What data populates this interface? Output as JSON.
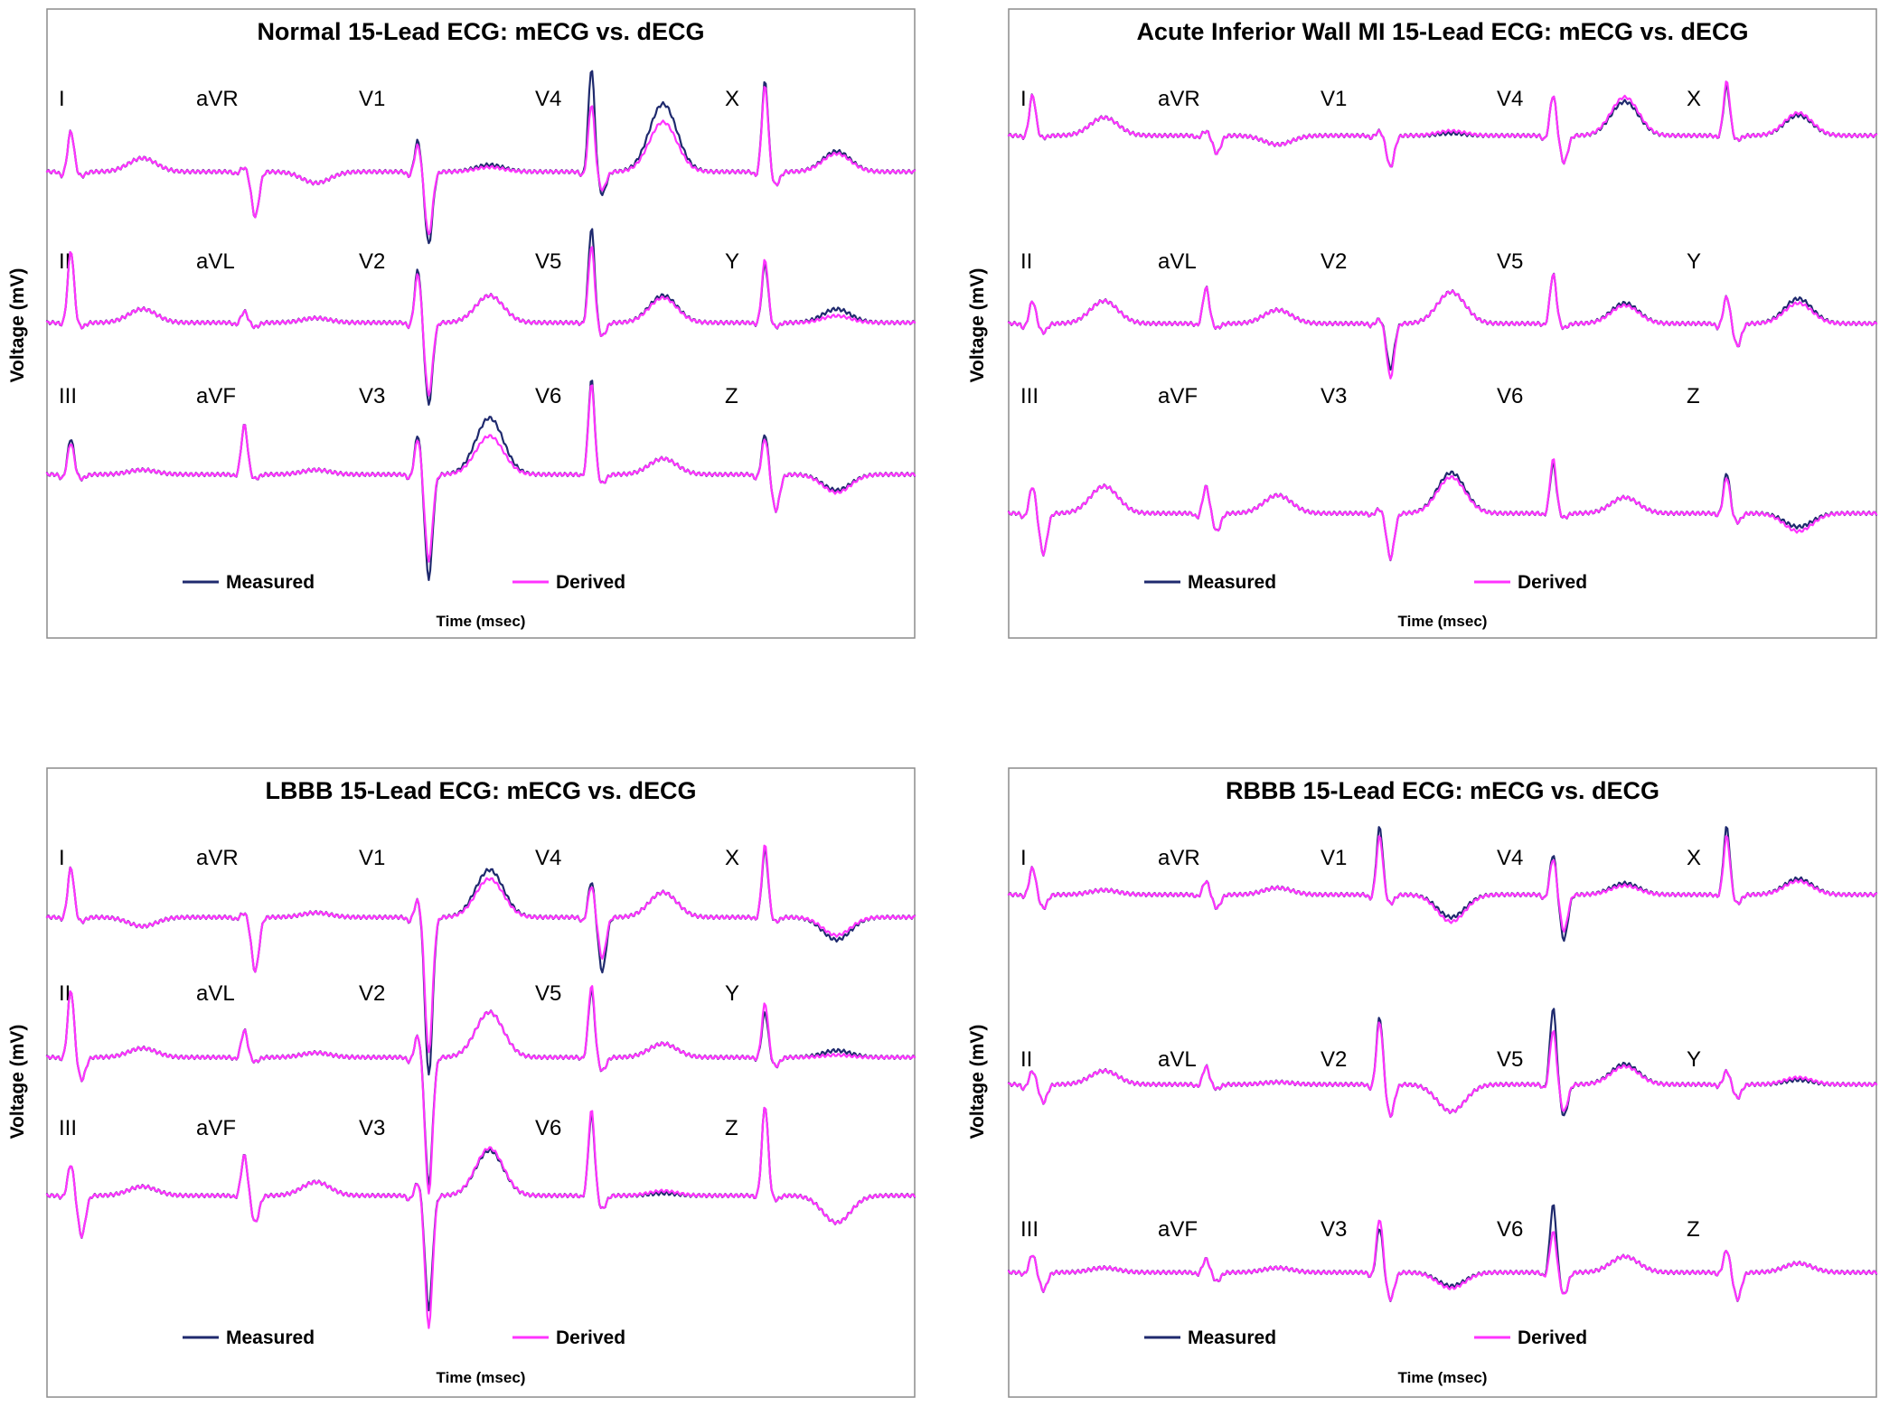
{
  "chart_data": [
    {
      "type": "line",
      "title": "Normal 15-Lead ECG:   mECG vs. dECG",
      "xlabel": "Time (msec)",
      "ylabel": "Voltage (mV)",
      "legend": [
        {
          "name": "Measured",
          "color": "#1f2a6e"
        },
        {
          "name": "Derived",
          "color": "#ff33ff"
        }
      ],
      "rows": [
        {
          "leads": [
            "I",
            "aVR",
            "V1",
            "V4",
            "X"
          ],
          "beats": [
            {
              "r": 0.9,
              "q": 0.1,
              "s": -0.1,
              "t": 0.3,
              "tm": 0.3,
              "rm": 0.9,
              "sm": -0.1
            },
            {
              "r": 0.1,
              "q": 0.05,
              "s": -1.0,
              "t": -0.25,
              "tm": -0.25,
              "rm": 0.1,
              "sm": -1.0
            },
            {
              "r": 0.6,
              "q": 0.1,
              "s": -1.4,
              "t": 0.1,
              "tm": 0.15,
              "rm": 0.7,
              "sm": -1.6
            },
            {
              "r": 1.5,
              "q": 0.1,
              "s": -0.4,
              "t": 1.1,
              "tm": 1.5,
              "rm": 2.3,
              "sm": -0.5
            },
            {
              "r": 1.9,
              "q": 0.1,
              "s": -0.3,
              "t": 0.4,
              "tm": 0.45,
              "rm": 2.0,
              "sm": -0.3
            }
          ]
        },
        {
          "leads": [
            "II",
            "aVL",
            "V2",
            "V5",
            "Y"
          ],
          "beats": [
            {
              "r": 1.6,
              "q": 0.05,
              "s": -0.1,
              "t": 0.3,
              "tm": 0.3,
              "rm": 1.6,
              "sm": -0.1
            },
            {
              "r": 0.25,
              "q": 0.05,
              "s": -0.1,
              "t": 0.1,
              "tm": 0.1,
              "rm": 0.25,
              "sm": -0.1
            },
            {
              "r": 1.1,
              "q": 0.1,
              "s": -1.6,
              "t": 0.6,
              "tm": 0.6,
              "rm": 1.2,
              "sm": -1.8
            },
            {
              "r": 1.7,
              "q": 0.05,
              "s": -0.3,
              "t": 0.55,
              "tm": 0.6,
              "rm": 2.1,
              "sm": -0.3
            },
            {
              "r": 1.4,
              "q": 0.05,
              "s": -0.1,
              "t": 0.15,
              "tm": 0.3,
              "rm": 1.3,
              "sm": -0.1
            }
          ]
        },
        {
          "leads": [
            "III",
            "aVF",
            "V3",
            "V6",
            "Z"
          ],
          "beats": [
            {
              "r": 0.7,
              "q": 0.1,
              "s": -0.1,
              "t": 0.1,
              "tm": 0.1,
              "rm": 0.8,
              "sm": -0.1
            },
            {
              "r": 1.1,
              "q": 0.05,
              "s": -0.1,
              "t": 0.1,
              "tm": 0.1,
              "rm": 1.1,
              "sm": -0.1
            },
            {
              "r": 0.8,
              "q": 0.1,
              "s": -1.9,
              "t": 0.85,
              "tm": 1.25,
              "rm": 0.9,
              "sm": -2.3
            },
            {
              "r": 2.0,
              "q": 0.05,
              "s": -0.2,
              "t": 0.35,
              "tm": 0.35,
              "rm": 2.1,
              "sm": -0.2
            },
            {
              "r": 0.8,
              "q": 0.1,
              "s": -0.8,
              "t": -0.4,
              "tm": -0.35,
              "rm": 0.9,
              "sm": -0.8
            }
          ]
        }
      ]
    },
    {
      "type": "line",
      "title": "Acute Inferior Wall MI 15-Lead ECG:   mECG vs. dECG",
      "xlabel": "Time (msec)",
      "ylabel": "Voltage (mV)",
      "legend": [
        {
          "name": "Measured",
          "color": "#1f2a6e"
        },
        {
          "name": "Derived",
          "color": "#ff33ff"
        }
      ],
      "rows": [
        {
          "leads": [
            "I",
            "aVR",
            "V1",
            "V4",
            "X"
          ],
          "beats": [
            {
              "r": 0.9,
              "q": 0.05,
              "s": -0.05,
              "t": 0.4,
              "tm": 0.4,
              "rm": 0.9,
              "sm": -0.05
            },
            {
              "r": 0.1,
              "q": 0.05,
              "s": -0.4,
              "t": -0.2,
              "tm": -0.2,
              "rm": 0.1,
              "sm": -0.4
            },
            {
              "r": 0.1,
              "q": 0.05,
              "s": -0.7,
              "t": 0.1,
              "tm": 0.05,
              "rm": 0.1,
              "sm": -0.7
            },
            {
              "r": 0.9,
              "q": 0.1,
              "s": -0.6,
              "t": 0.85,
              "tm": 0.75,
              "rm": 0.9,
              "sm": -0.6
            },
            {
              "r": 1.2,
              "q": 0.05,
              "s": -0.1,
              "t": 0.5,
              "tm": 0.45,
              "rm": 1.1,
              "sm": -0.1
            }
          ]
        },
        {
          "leads": [
            "II",
            "aVL",
            "V2",
            "V5",
            "Y"
          ],
          "beats": [
            {
              "r": 0.5,
              "q": 0.1,
              "s": -0.2,
              "t": 0.5,
              "tm": 0.5,
              "rm": 0.5,
              "sm": -0.2
            },
            {
              "r": 0.8,
              "q": 0.05,
              "s": -0.1,
              "t": 0.3,
              "tm": 0.3,
              "rm": 0.8,
              "sm": -0.1
            },
            {
              "r": 0.1,
              "q": 0.05,
              "s": -1.2,
              "t": 0.7,
              "tm": 0.7,
              "rm": 0.1,
              "sm": -1.0
            },
            {
              "r": 1.1,
              "q": 0.05,
              "s": -0.1,
              "t": 0.4,
              "tm": 0.45,
              "rm": 1.1,
              "sm": -0.1
            },
            {
              "r": 0.6,
              "q": 0.1,
              "s": -0.5,
              "t": 0.45,
              "tm": 0.55,
              "rm": 0.6,
              "sm": -0.5
            }
          ]
        },
        {
          "leads": [
            "III",
            "aVF",
            "V3",
            "V6",
            "Z"
          ],
          "beats": [
            {
              "r": 0.6,
              "q": 0.1,
              "s": -0.9,
              "t": 0.6,
              "tm": 0.6,
              "rm": 0.6,
              "sm": -0.9
            },
            {
              "r": 0.6,
              "q": 0.1,
              "s": -0.4,
              "t": 0.4,
              "tm": 0.4,
              "rm": 0.6,
              "sm": -0.4
            },
            {
              "r": 0.1,
              "q": 0.05,
              "s": -1.0,
              "t": 0.8,
              "tm": 0.9,
              "rm": 0.1,
              "sm": -1.0
            },
            {
              "r": 1.2,
              "q": 0.05,
              "s": -0.1,
              "t": 0.35,
              "tm": 0.35,
              "rm": 1.1,
              "sm": -0.1
            },
            {
              "r": 0.8,
              "q": 0.05,
              "s": -0.2,
              "t": -0.4,
              "tm": -0.3,
              "rm": 0.9,
              "sm": -0.2
            }
          ]
        }
      ]
    },
    {
      "type": "line",
      "title": "LBBB 15-Lead ECG:   mECG vs. dECG",
      "xlabel": "Time (msec)",
      "ylabel": "Voltage (mV)",
      "legend": [
        {
          "name": "Measured",
          "color": "#1f2a6e"
        },
        {
          "name": "Derived",
          "color": "#ff33ff"
        }
      ],
      "rows": [
        {
          "leads": [
            "I",
            "aVR",
            "V1",
            "V4",
            "X"
          ],
          "beats": [
            {
              "r": 1.1,
              "q": 0.05,
              "s": -0.1,
              "t": -0.2,
              "tm": -0.2,
              "rm": 1.1,
              "sm": -0.1
            },
            {
              "r": 0.1,
              "q": 0.05,
              "s": -1.2,
              "t": 0.1,
              "tm": 0.1,
              "rm": 0.1,
              "sm": -1.2
            },
            {
              "r": 0.4,
              "q": 0.1,
              "s": -3.0,
              "t": 0.85,
              "tm": 1.05,
              "rm": 0.4,
              "sm": -3.5
            },
            {
              "r": 0.7,
              "q": 0.1,
              "s": -0.9,
              "t": 0.55,
              "tm": 0.55,
              "rm": 0.8,
              "sm": -1.2
            },
            {
              "r": 1.6,
              "q": 0.05,
              "s": -0.1,
              "t": -0.4,
              "tm": -0.5,
              "rm": 1.5,
              "sm": -0.1
            }
          ]
        },
        {
          "leads": [
            "II",
            "aVL",
            "V2",
            "V5",
            "Y"
          ],
          "beats": [
            {
              "r": 1.5,
              "q": 0.05,
              "s": -0.5,
              "t": 0.2,
              "tm": 0.2,
              "rm": 1.5,
              "sm": -0.5
            },
            {
              "r": 0.6,
              "q": 0.05,
              "s": -0.1,
              "t": 0.1,
              "tm": 0.1,
              "rm": 0.6,
              "sm": -0.1
            },
            {
              "r": 0.5,
              "q": 0.1,
              "s": -3.0,
              "t": 1.0,
              "tm": 1.0,
              "rm": 0.5,
              "sm": -2.8
            },
            {
              "r": 1.6,
              "q": 0.05,
              "s": -0.3,
              "t": 0.3,
              "tm": 0.3,
              "rm": 1.5,
              "sm": -0.3
            },
            {
              "r": 1.2,
              "q": 0.05,
              "s": -0.2,
              "t": 0.05,
              "tm": 0.15,
              "rm": 1.0,
              "sm": -0.2
            }
          ]
        },
        {
          "leads": [
            "III",
            "aVF",
            "V3",
            "V6",
            "Z"
          ],
          "beats": [
            {
              "r": 0.7,
              "q": 0.05,
              "s": -0.9,
              "t": 0.2,
              "tm": 0.2,
              "rm": 0.7,
              "sm": -0.9
            },
            {
              "r": 0.9,
              "q": 0.05,
              "s": -0.6,
              "t": 0.3,
              "tm": 0.3,
              "rm": 0.9,
              "sm": -0.6
            },
            {
              "r": 0.3,
              "q": 0.1,
              "s": -2.9,
              "t": 1.05,
              "tm": 1.0,
              "rm": 0.3,
              "sm": -2.5
            },
            {
              "r": 1.9,
              "q": 0.05,
              "s": -0.3,
              "t": 0.1,
              "tm": 0.05,
              "rm": 1.8,
              "sm": -0.3
            },
            {
              "r": 2.0,
              "q": 0.05,
              "s": -0.1,
              "t": -0.6,
              "tm": -0.6,
              "rm": 2.0,
              "sm": -0.1
            }
          ]
        }
      ]
    },
    {
      "type": "line",
      "title": "RBBB 15-Lead ECG:   mECG vs. dECG",
      "xlabel": "Time (msec)",
      "ylabel": "Voltage (mV)",
      "legend": [
        {
          "name": "Measured",
          "color": "#1f2a6e"
        },
        {
          "name": "Derived",
          "color": "#ff33ff"
        }
      ],
      "rows": [
        {
          "leads": [
            "I",
            "aVR",
            "V1",
            "V4",
            "X"
          ],
          "beats": [
            {
              "r": 0.6,
              "q": 0.05,
              "s": -0.3,
              "t": 0.1,
              "tm": 0.1,
              "rm": 0.6,
              "sm": -0.3
            },
            {
              "r": 0.3,
              "q": 0.05,
              "s": -0.3,
              "t": 0.15,
              "tm": 0.15,
              "rm": 0.3,
              "sm": -0.3
            },
            {
              "r": 1.3,
              "q": 0.1,
              "s": -0.2,
              "t": -0.6,
              "tm": -0.5,
              "rm": 1.5,
              "sm": -0.2
            },
            {
              "r": 0.8,
              "q": 0.1,
              "s": -0.8,
              "t": 0.2,
              "tm": 0.25,
              "rm": 0.9,
              "sm": -1.0
            },
            {
              "r": 1.3,
              "q": 0.05,
              "s": -0.2,
              "t": 0.3,
              "tm": 0.35,
              "rm": 1.5,
              "sm": -0.2
            }
          ]
        },
        {
          "leads": [
            "II",
            "aVL",
            "V2",
            "V5",
            "Y"
          ],
          "beats": [
            {
              "r": 0.3,
              "q": 0.1,
              "s": -0.4,
              "t": 0.3,
              "tm": 0.3,
              "rm": 0.3,
              "sm": -0.4
            },
            {
              "r": 0.4,
              "q": 0.05,
              "s": -0.1,
              "t": 0.05,
              "tm": 0.05,
              "rm": 0.4,
              "sm": -0.1
            },
            {
              "r": 1.4,
              "q": 0.1,
              "s": -0.7,
              "t": -0.6,
              "tm": -0.6,
              "rm": 1.5,
              "sm": -0.7
            },
            {
              "r": 1.2,
              "q": 0.1,
              "s": -0.6,
              "t": 0.4,
              "tm": 0.45,
              "rm": 1.7,
              "sm": -0.7
            },
            {
              "r": 0.3,
              "q": 0.05,
              "s": -0.3,
              "t": 0.15,
              "tm": 0.1,
              "rm": 0.3,
              "sm": -0.3
            }
          ]
        },
        {
          "leads": [
            "III",
            "aVF",
            "V3",
            "V6",
            "Z"
          ],
          "beats": [
            {
              "r": 0.4,
              "q": 0.05,
              "s": -0.4,
              "t": 0.1,
              "tm": 0.1,
              "rm": 0.4,
              "sm": -0.4
            },
            {
              "r": 0.3,
              "q": 0.05,
              "s": -0.2,
              "t": 0.1,
              "tm": 0.1,
              "rm": 0.3,
              "sm": -0.2
            },
            {
              "r": 1.2,
              "q": 0.1,
              "s": -0.6,
              "t": -0.35,
              "tm": -0.3,
              "rm": 1.0,
              "sm": -0.6
            },
            {
              "r": 0.9,
              "q": 0.1,
              "s": -0.5,
              "t": 0.35,
              "tm": 0.35,
              "rm": 1.5,
              "sm": -0.5
            },
            {
              "r": 0.5,
              "q": 0.05,
              "s": -0.6,
              "t": 0.2,
              "tm": 0.2,
              "rm": 0.5,
              "sm": -0.6
            }
          ]
        }
      ]
    }
  ]
}
